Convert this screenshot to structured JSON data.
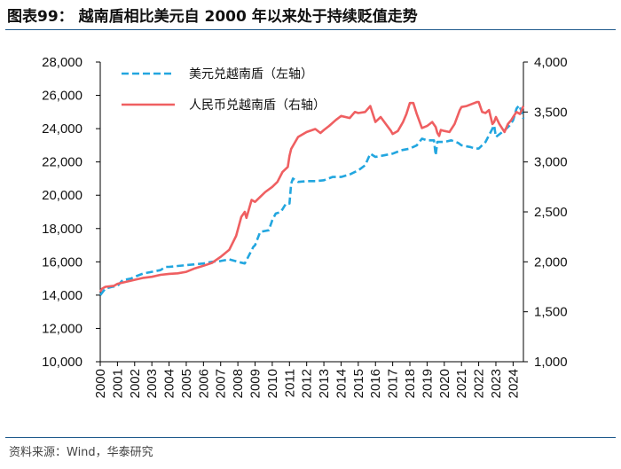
{
  "title": "图表99：  越南盾相比美元自 2000 年以来处于持续贬值走势",
  "source": "资料来源：Wind，华泰研究",
  "colors": {
    "usd": "#22a6df",
    "cny": "#ef5f61",
    "rule": "#1f5a8c"
  },
  "chart_data": {
    "type": "line",
    "title": "越南盾相比美元自 2000 年以来处于持续贬值走势",
    "x_ticks": [
      "2000",
      "2001",
      "2002",
      "2003",
      "2004",
      "2005",
      "2006",
      "2007",
      "2008",
      "2009",
      "2010",
      "2011",
      "2012",
      "2013",
      "2014",
      "2015",
      "2016",
      "2017",
      "2018",
      "2019",
      "2020",
      "2021",
      "2022",
      "2023",
      "2024"
    ],
    "y_left": {
      "min": 10000,
      "max": 28000,
      "ticks": [
        10000,
        12000,
        14000,
        16000,
        18000,
        20000,
        22000,
        24000,
        26000,
        28000
      ],
      "tick_labels": [
        "10,000",
        "12,000",
        "14,000",
        "16,000",
        "18,000",
        "20,000",
        "22,000",
        "24,000",
        "26,000",
        "28,000"
      ]
    },
    "y_right": {
      "min": 1000,
      "max": 4000,
      "ticks": [
        1000,
        1500,
        2000,
        2500,
        3000,
        3500,
        4000
      ],
      "tick_labels": [
        "1,000",
        "1,500",
        "2,000",
        "2,500",
        "3,000",
        "3,500",
        "4,000"
      ]
    },
    "series": [
      {
        "name": "美元兑越南盾（左轴）",
        "axis": "left",
        "style": "dashed",
        "points": [
          [
            2000.0,
            14000
          ],
          [
            2000.3,
            14400
          ],
          [
            2000.7,
            14500
          ],
          [
            2001.0,
            14550
          ],
          [
            2001.3,
            14900
          ],
          [
            2001.8,
            15000
          ],
          [
            2002.0,
            15100
          ],
          [
            2002.5,
            15300
          ],
          [
            2003.0,
            15400
          ],
          [
            2003.5,
            15500
          ],
          [
            2003.8,
            15700
          ],
          [
            2004.0,
            15700
          ],
          [
            2004.5,
            15750
          ],
          [
            2005.0,
            15800
          ],
          [
            2005.5,
            15850
          ],
          [
            2006.0,
            15900
          ],
          [
            2006.5,
            16000
          ],
          [
            2007.0,
            16050
          ],
          [
            2007.5,
            16150
          ],
          [
            2008.0,
            16000
          ],
          [
            2008.4,
            15900
          ],
          [
            2008.6,
            16300
          ],
          [
            2008.9,
            16900
          ],
          [
            2009.0,
            17000
          ],
          [
            2009.3,
            17800
          ],
          [
            2009.8,
            17900
          ],
          [
            2010.0,
            18500
          ],
          [
            2010.2,
            18900
          ],
          [
            2010.5,
            19000
          ],
          [
            2010.8,
            19500
          ],
          [
            2011.0,
            19500
          ],
          [
            2011.1,
            20700
          ],
          [
            2011.2,
            21000
          ],
          [
            2011.5,
            20800
          ],
          [
            2012.0,
            20850
          ],
          [
            2012.5,
            20850
          ],
          [
            2013.0,
            20900
          ],
          [
            2013.5,
            21100
          ],
          [
            2014.0,
            21100
          ],
          [
            2014.5,
            21250
          ],
          [
            2015.0,
            21500
          ],
          [
            2015.4,
            21800
          ],
          [
            2015.7,
            22500
          ],
          [
            2016.0,
            22300
          ],
          [
            2016.5,
            22400
          ],
          [
            2017.0,
            22500
          ],
          [
            2017.5,
            22700
          ],
          [
            2018.0,
            22800
          ],
          [
            2018.4,
            23000
          ],
          [
            2018.7,
            23400
          ],
          [
            2019.0,
            23300
          ],
          [
            2019.4,
            23300
          ],
          [
            2019.5,
            22400
          ],
          [
            2019.6,
            23200
          ],
          [
            2020.0,
            23200
          ],
          [
            2020.4,
            23300
          ],
          [
            2020.8,
            23150
          ],
          [
            2021.0,
            23000
          ],
          [
            2021.5,
            22900
          ],
          [
            2021.8,
            22800
          ],
          [
            2022.0,
            22800
          ],
          [
            2022.4,
            23200
          ],
          [
            2022.6,
            23600
          ],
          [
            2022.9,
            24200
          ],
          [
            2023.0,
            23500
          ],
          [
            2023.5,
            23900
          ],
          [
            2023.8,
            24200
          ],
          [
            2024.0,
            24500
          ],
          [
            2024.2,
            25200
          ],
          [
            2024.35,
            25400
          ],
          [
            2024.5,
            25000
          ],
          [
            2024.6,
            24600
          ]
        ]
      },
      {
        "name": "人民币兑越南盾（右轴）",
        "axis": "right",
        "style": "solid",
        "points": [
          [
            2000.0,
            1700
          ],
          [
            2000.1,
            1730
          ],
          [
            2000.3,
            1750
          ],
          [
            2000.8,
            1760
          ],
          [
            2001.0,
            1780
          ],
          [
            2001.5,
            1800
          ],
          [
            2002.0,
            1820
          ],
          [
            2002.5,
            1840
          ],
          [
            2003.0,
            1850
          ],
          [
            2003.5,
            1870
          ],
          [
            2004.0,
            1880
          ],
          [
            2004.5,
            1885
          ],
          [
            2005.0,
            1900
          ],
          [
            2005.5,
            1935
          ],
          [
            2006.0,
            1960
          ],
          [
            2006.5,
            1990
          ],
          [
            2007.0,
            2050
          ],
          [
            2007.5,
            2120
          ],
          [
            2007.9,
            2260
          ],
          [
            2008.2,
            2450
          ],
          [
            2008.4,
            2500
          ],
          [
            2008.5,
            2440
          ],
          [
            2008.8,
            2620
          ],
          [
            2009.0,
            2600
          ],
          [
            2009.3,
            2650
          ],
          [
            2009.6,
            2700
          ],
          [
            2010.0,
            2750
          ],
          [
            2010.3,
            2800
          ],
          [
            2010.6,
            2900
          ],
          [
            2010.9,
            2950
          ],
          [
            2011.0,
            3060
          ],
          [
            2011.1,
            3130
          ],
          [
            2011.5,
            3250
          ],
          [
            2012.0,
            3300
          ],
          [
            2012.5,
            3330
          ],
          [
            2012.8,
            3290
          ],
          [
            2013.0,
            3320
          ],
          [
            2013.3,
            3360
          ],
          [
            2013.7,
            3420
          ],
          [
            2014.0,
            3460
          ],
          [
            2014.5,
            3440
          ],
          [
            2014.8,
            3500
          ],
          [
            2015.0,
            3490
          ],
          [
            2015.4,
            3500
          ],
          [
            2015.7,
            3560
          ],
          [
            2016.0,
            3400
          ],
          [
            2016.3,
            3450
          ],
          [
            2016.6,
            3380
          ],
          [
            2016.9,
            3310
          ],
          [
            2017.0,
            3280
          ],
          [
            2017.3,
            3310
          ],
          [
            2017.6,
            3400
          ],
          [
            2017.8,
            3480
          ],
          [
            2018.0,
            3590
          ],
          [
            2018.2,
            3590
          ],
          [
            2018.4,
            3480
          ],
          [
            2018.7,
            3340
          ],
          [
            2019.0,
            3360
          ],
          [
            2019.3,
            3400
          ],
          [
            2019.5,
            3350
          ],
          [
            2019.6,
            3290
          ],
          [
            2019.7,
            3260
          ],
          [
            2019.8,
            3320
          ],
          [
            2020.0,
            3310
          ],
          [
            2020.3,
            3300
          ],
          [
            2020.6,
            3380
          ],
          [
            2020.9,
            3520
          ],
          [
            2021.0,
            3550
          ],
          [
            2021.3,
            3560
          ],
          [
            2021.6,
            3580
          ],
          [
            2021.9,
            3600
          ],
          [
            2022.0,
            3600
          ],
          [
            2022.2,
            3500
          ],
          [
            2022.4,
            3490
          ],
          [
            2022.6,
            3520
          ],
          [
            2022.8,
            3380
          ],
          [
            2022.9,
            3400
          ],
          [
            2023.0,
            3450
          ],
          [
            2023.2,
            3380
          ],
          [
            2023.5,
            3300
          ],
          [
            2023.7,
            3380
          ],
          [
            2023.9,
            3420
          ],
          [
            2024.0,
            3450
          ],
          [
            2024.2,
            3500
          ],
          [
            2024.4,
            3480
          ],
          [
            2024.6,
            3560
          ]
        ]
      }
    ]
  }
}
